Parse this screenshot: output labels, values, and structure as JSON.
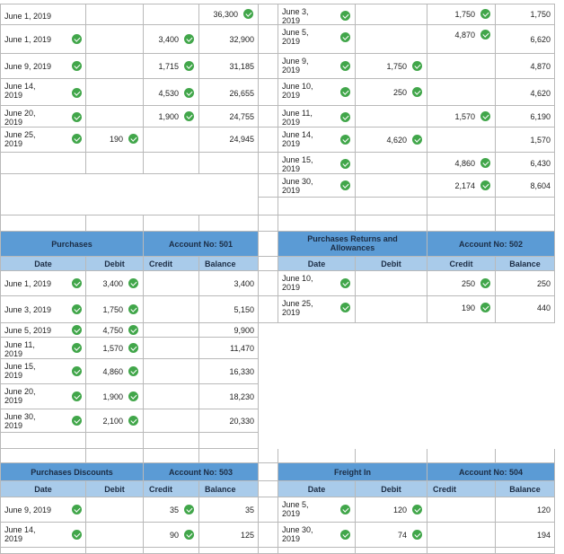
{
  "check_icon_color": "#41a64a",
  "header_colors": {
    "title_row": "#5b9bd5",
    "column_row": "#a9cbea"
  },
  "top_left": {
    "rows": [
      {
        "date": "June 1, 2019",
        "date_check": false,
        "debit": "",
        "credit": "",
        "balance": "36,300",
        "balance_check": true
      },
      {
        "date": "June 1, 2019",
        "date_check": true,
        "debit": "",
        "credit": "3,400",
        "balance": "32,900",
        "balance_check": false
      },
      {
        "date": "June 9, 2019",
        "date_check": true,
        "debit": "",
        "credit": "1,715",
        "balance": "31,185",
        "balance_check": false
      },
      {
        "date": "June 14, 2019",
        "date_check": true,
        "debit": "",
        "credit": "4,530",
        "balance": "26,655",
        "balance_check": false
      },
      {
        "date": "June 20, 2019",
        "date_check": true,
        "debit": "",
        "credit": "1,900",
        "balance": "24,755",
        "balance_check": false
      },
      {
        "date": "June 25, 2019",
        "date_check": true,
        "debit": "190",
        "credit": "",
        "balance": "24,945",
        "balance_check": false
      }
    ]
  },
  "top_right": {
    "rows": [
      {
        "date": "June 3, 2019",
        "debit": "",
        "credit": "1,750",
        "balance": "1,750"
      },
      {
        "date": "June 5, 2019",
        "debit": "",
        "credit": "4,870",
        "balance": "6,620"
      },
      {
        "date": "June 9, 2019",
        "debit": "1,750",
        "credit": "",
        "balance": "4,870"
      },
      {
        "date": "June 10, 2019",
        "debit": "250",
        "credit": "",
        "balance": "4,620"
      },
      {
        "date": "June 11, 2019",
        "debit": "",
        "credit": "1,570",
        "balance": "6,190"
      },
      {
        "date": "June 14, 2019",
        "debit": "4,620",
        "credit": "",
        "balance": "1,570"
      },
      {
        "date": "June 15, 2019",
        "debit": "",
        "credit": "4,860",
        "balance": "6,430"
      },
      {
        "date": "June 30, 2019",
        "debit": "",
        "credit": "2,174",
        "balance": "8,604"
      }
    ]
  },
  "purchases": {
    "title": "Purchases",
    "account": "Account No: 501",
    "columns": {
      "date": "Date",
      "debit": "Debit",
      "credit": "Credit",
      "balance": "Balance"
    },
    "rows": [
      {
        "date": "June 1, 2019",
        "debit": "3,400",
        "balance": "3,400"
      },
      {
        "date": "June 3, 2019",
        "debit": "1,750",
        "balance": "5,150"
      },
      {
        "date": "June 5, 2019",
        "debit": "4,750",
        "balance": "9,900"
      },
      {
        "date": "June 11, 2019",
        "debit": "1,570",
        "balance": "11,470"
      },
      {
        "date": "June 15, 2019",
        "debit": "4,860",
        "balance": "16,330"
      },
      {
        "date": "June 20, 2019",
        "debit": "1,900",
        "balance": "18,230"
      },
      {
        "date": "June 30, 2019",
        "debit": "2,100",
        "balance": "20,330"
      }
    ]
  },
  "purchases_returns": {
    "title": "Purchases Returns and Allowances",
    "account": "Account No: 502",
    "columns": {
      "date": "Date",
      "debit": "Debit",
      "credit": "Credit",
      "balance": "Balance"
    },
    "rows": [
      {
        "date": "June 10, 2019",
        "credit": "250",
        "balance": "250"
      },
      {
        "date": "June 25, 2019",
        "credit": "190",
        "balance": "440"
      }
    ]
  },
  "purchases_discounts": {
    "title": "Purchases Discounts",
    "account": "Account No: 503",
    "columns": {
      "date": "Date",
      "debit": "Debit",
      "credit": "Credit",
      "balance": "Balance"
    },
    "rows": [
      {
        "date": "June 9, 2019",
        "credit": "35",
        "balance": "35"
      },
      {
        "date": "June 14, 2019",
        "credit": "90",
        "balance": "125"
      }
    ]
  },
  "freight_in": {
    "title": "Freight In",
    "account": "Account No: 504",
    "columns": {
      "date": "Date",
      "debit": "Debit",
      "credit": "Credit",
      "balance": "Balance"
    },
    "rows": [
      {
        "date": "June 5, 2019",
        "debit": "120",
        "balance": "120"
      },
      {
        "date": "June 30, 2019",
        "debit": "74",
        "balance": "194"
      }
    ]
  }
}
